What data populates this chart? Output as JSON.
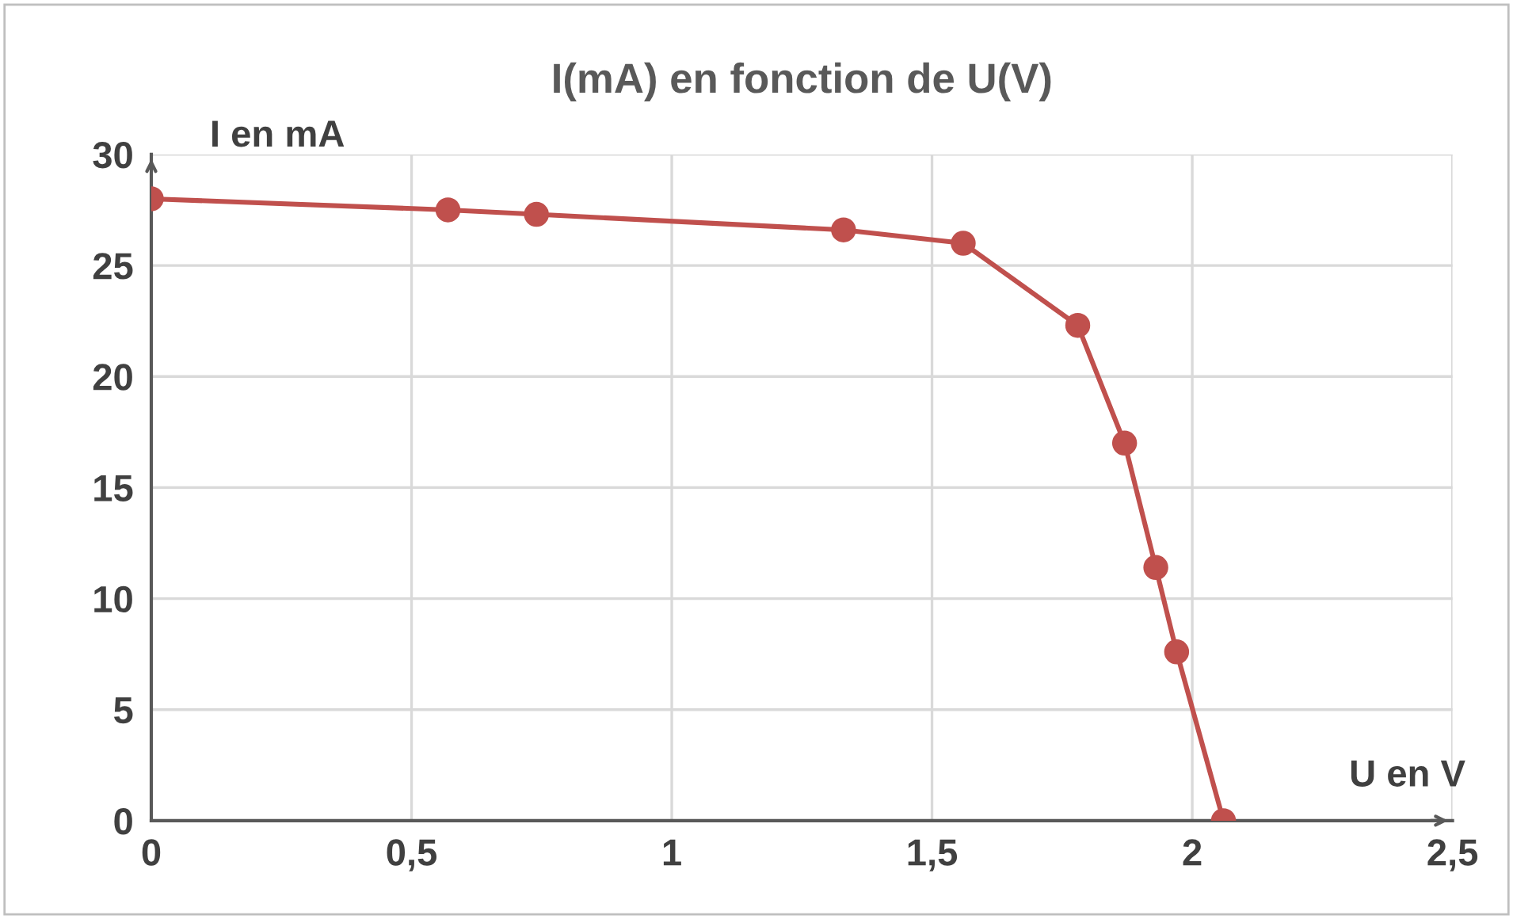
{
  "chart_data": {
    "type": "line",
    "title": "I(mA) en fonction de U(V)",
    "xlabel": "U en V",
    "ylabel": "I en mA",
    "series": [
      {
        "color": "#c0504d",
        "x": [
          0,
          0.57,
          0.74,
          1.33,
          1.56,
          1.78,
          1.87,
          1.93,
          1.97,
          2.06
        ],
        "values": [
          28.0,
          27.5,
          27.3,
          26.6,
          26.0,
          22.3,
          17.0,
          11.4,
          7.6,
          0
        ]
      }
    ],
    "xlim": [
      0,
      2.5
    ],
    "ylim": [
      0,
      30
    ],
    "xticks": [
      {
        "value": 0,
        "label": "0"
      },
      {
        "value": 0.5,
        "label": "0,5"
      },
      {
        "value": 1,
        "label": "1"
      },
      {
        "value": 1.5,
        "label": "1,5"
      },
      {
        "value": 2,
        "label": "2"
      },
      {
        "value": 2.5,
        "label": "2,5"
      }
    ],
    "yticks": [
      0,
      5,
      10,
      15,
      20,
      25,
      30
    ],
    "grid": true,
    "marker": "circle",
    "line_style": "solid"
  }
}
